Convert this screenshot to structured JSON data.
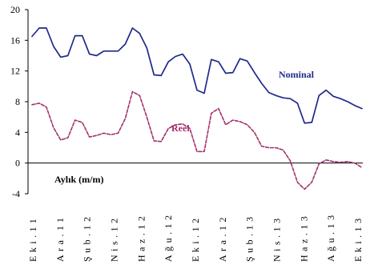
{
  "chart_data": {
    "type": "line",
    "ylim": [
      -4,
      20
    ],
    "yticks": [
      -4,
      0,
      4,
      8,
      12,
      16,
      20
    ],
    "grid": false,
    "x_tick_labels": [
      "Eki.11",
      "Ara.11",
      "Şub.12",
      "Nis.12",
      "Haz.12",
      "Ağu.12",
      "Eki.12",
      "Ara.12",
      "Şub.13",
      "Nis.13",
      "Haz.13",
      "Ağu.13",
      "Eki.13"
    ],
    "annotation": "Aylık (m/m)",
    "series": [
      {
        "name": "Nominal",
        "color": "#1f2a8c",
        "style": "solid",
        "values": [
          16.5,
          17.6,
          17.6,
          15.2,
          13.8,
          14.0,
          16.6,
          16.6,
          14.2,
          14.0,
          14.6,
          14.6,
          14.6,
          15.5,
          17.6,
          16.9,
          15.0,
          11.5,
          11.4,
          13.2,
          13.9,
          14.2,
          12.9,
          9.5,
          9.1,
          13.5,
          13.2,
          11.7,
          11.8,
          13.6,
          13.3,
          11.8,
          10.4,
          9.2,
          8.8,
          8.5,
          8.4,
          7.8,
          5.2,
          5.3,
          8.8,
          9.5,
          8.7,
          8.4,
          8.0,
          7.5,
          7.1
        ]
      },
      {
        "name": "Reel",
        "color": "#a3306a",
        "style": "dashed",
        "values": [
          7.6,
          7.8,
          7.3,
          4.6,
          3.0,
          3.3,
          5.6,
          5.3,
          3.4,
          3.6,
          3.9,
          3.7,
          3.9,
          5.8,
          9.3,
          8.8,
          6.0,
          2.9,
          2.8,
          4.5,
          5.0,
          5.1,
          4.5,
          1.5,
          1.5,
          6.5,
          7.1,
          5.0,
          5.6,
          5.4,
          5.0,
          4.0,
          2.2,
          2.0,
          2.0,
          1.7,
          0.3,
          -2.5,
          -3.4,
          -2.5,
          -0.1,
          0.4,
          0.2,
          0.1,
          0.2,
          0.0,
          -0.6
        ]
      }
    ]
  }
}
